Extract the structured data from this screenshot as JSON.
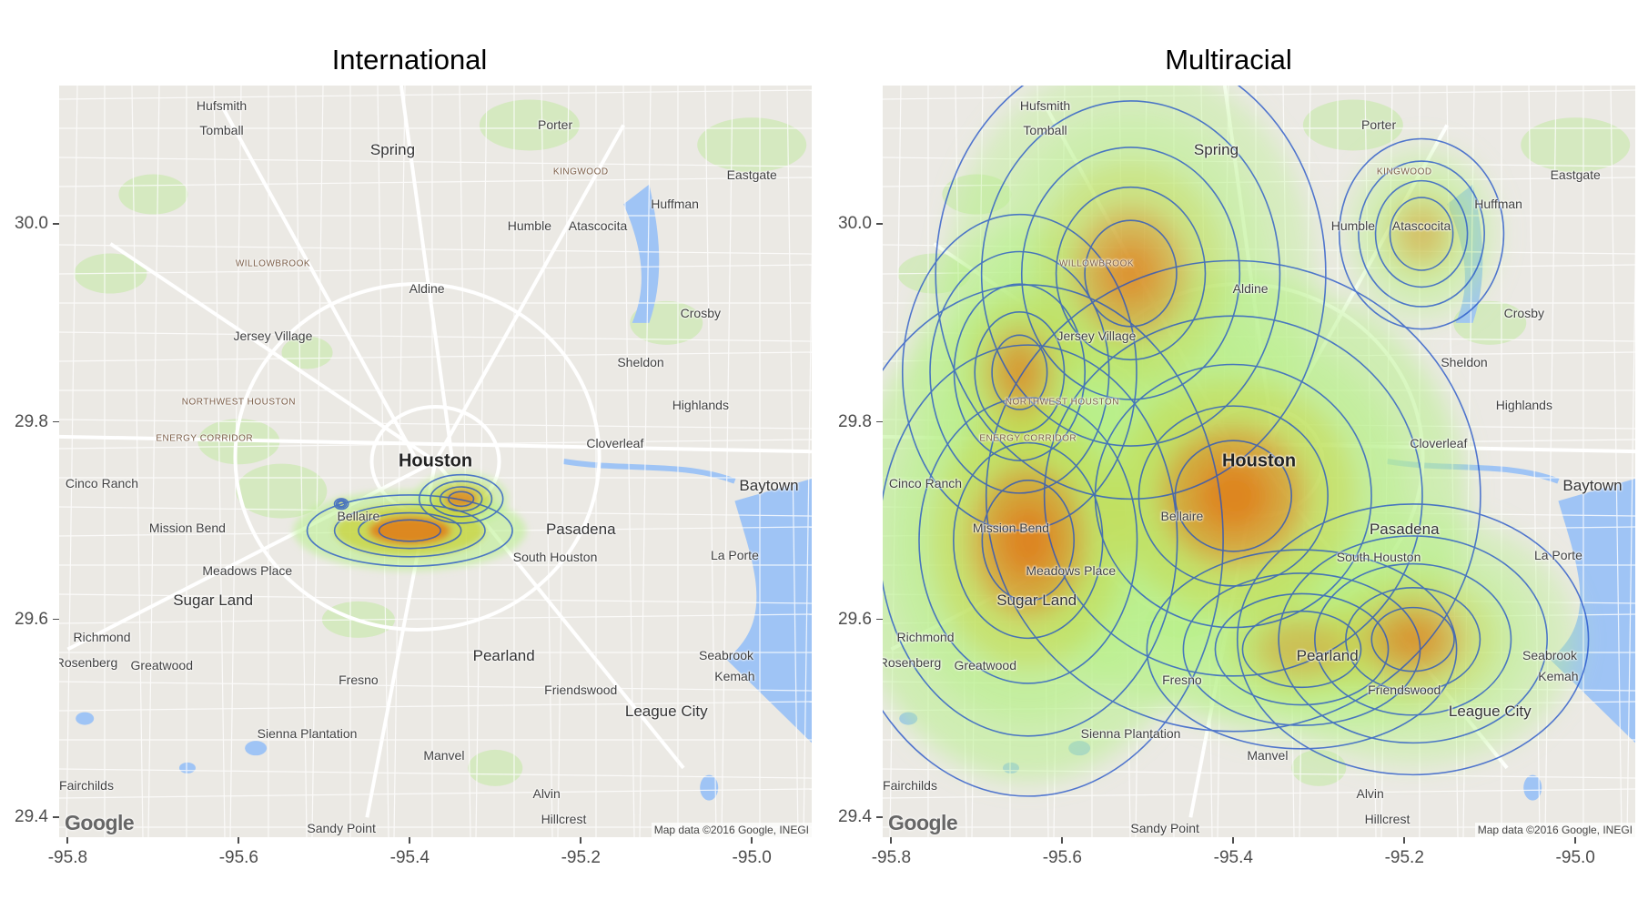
{
  "panels": [
    {
      "id": "left",
      "title": "International"
    },
    {
      "id": "right",
      "title": "Multiracial"
    }
  ],
  "axes": {
    "x_ticks": [
      "-95.8",
      "-95.6",
      "-95.4",
      "-95.2",
      "-95.0"
    ],
    "y_ticks": [
      "30.0",
      "29.8",
      "29.6",
      "29.4"
    ],
    "x_range": [
      -95.81,
      -94.93
    ],
    "y_range": [
      29.38,
      30.14
    ]
  },
  "map": {
    "logo": "Google",
    "attribution": "Map data ©2016 Google, INEGI",
    "places": [
      {
        "name": "Hufsmith",
        "lon": -95.62,
        "lat": 30.12,
        "size": "normal"
      },
      {
        "name": "Tomball",
        "lon": -95.62,
        "lat": 30.095,
        "size": "normal"
      },
      {
        "name": "Porter",
        "lon": -95.23,
        "lat": 30.1,
        "size": "normal"
      },
      {
        "name": "Spring",
        "lon": -95.42,
        "lat": 30.075,
        "size": "big"
      },
      {
        "name": "KINGWOOD",
        "lon": -95.2,
        "lat": 30.053,
        "size": "district"
      },
      {
        "name": "Eastgate",
        "lon": -95.0,
        "lat": 30.05,
        "size": "normal"
      },
      {
        "name": "Huffman",
        "lon": -95.09,
        "lat": 30.02,
        "size": "normal"
      },
      {
        "name": "Humble",
        "lon": -95.26,
        "lat": 29.998,
        "size": "normal"
      },
      {
        "name": "Atascocita",
        "lon": -95.18,
        "lat": 29.998,
        "size": "normal"
      },
      {
        "name": "WILLOWBROOK",
        "lon": -95.56,
        "lat": 29.96,
        "size": "district"
      },
      {
        "name": "Aldine",
        "lon": -95.38,
        "lat": 29.935,
        "size": "normal"
      },
      {
        "name": "Crosby",
        "lon": -95.06,
        "lat": 29.91,
        "size": "normal"
      },
      {
        "name": "Jersey Village",
        "lon": -95.56,
        "lat": 29.887,
        "size": "normal"
      },
      {
        "name": "Sheldon",
        "lon": -95.13,
        "lat": 29.86,
        "size": "normal"
      },
      {
        "name": "NORTHWEST HOUSTON",
        "lon": -95.6,
        "lat": 29.82,
        "size": "district"
      },
      {
        "name": "Highlands",
        "lon": -95.06,
        "lat": 29.817,
        "size": "normal"
      },
      {
        "name": "ENERGY CORRIDOR",
        "lon": -95.64,
        "lat": 29.783,
        "size": "district"
      },
      {
        "name": "Cloverleaf",
        "lon": -95.16,
        "lat": 29.778,
        "size": "normal"
      },
      {
        "name": "Houston",
        "lon": -95.37,
        "lat": 29.76,
        "size": "major"
      },
      {
        "name": "Cinco Ranch",
        "lon": -95.76,
        "lat": 29.738,
        "size": "normal"
      },
      {
        "name": "Baytown",
        "lon": -94.98,
        "lat": 29.735,
        "size": "big"
      },
      {
        "name": "Bellaire",
        "lon": -95.46,
        "lat": 29.705,
        "size": "normal"
      },
      {
        "name": "Mission Bend",
        "lon": -95.66,
        "lat": 29.693,
        "size": "normal"
      },
      {
        "name": "Pasadena",
        "lon": -95.2,
        "lat": 29.691,
        "size": "big"
      },
      {
        "name": "South Houston",
        "lon": -95.23,
        "lat": 29.663,
        "size": "normal"
      },
      {
        "name": "La Porte",
        "lon": -95.02,
        "lat": 29.665,
        "size": "normal"
      },
      {
        "name": "Meadows Place",
        "lon": -95.59,
        "lat": 29.65,
        "size": "normal"
      },
      {
        "name": "Sugar Land",
        "lon": -95.63,
        "lat": 29.619,
        "size": "big"
      },
      {
        "name": "Richmond",
        "lon": -95.76,
        "lat": 29.582,
        "size": "normal"
      },
      {
        "name": "Seabrook",
        "lon": -95.03,
        "lat": 29.564,
        "size": "normal"
      },
      {
        "name": "Greatwood",
        "lon": -95.69,
        "lat": 29.554,
        "size": "normal"
      },
      {
        "name": "Pearland",
        "lon": -95.29,
        "lat": 29.563,
        "size": "big"
      },
      {
        "name": "Kemah",
        "lon": -95.02,
        "lat": 29.543,
        "size": "normal"
      },
      {
        "name": "Fresno",
        "lon": -95.46,
        "lat": 29.539,
        "size": "normal"
      },
      {
        "name": "Friendswood",
        "lon": -95.2,
        "lat": 29.529,
        "size": "normal"
      },
      {
        "name": "League City",
        "lon": -95.1,
        "lat": 29.507,
        "size": "big"
      },
      {
        "name": "Sienna Plantation",
        "lon": -95.52,
        "lat": 29.485,
        "size": "normal"
      },
      {
        "name": "Manvel",
        "lon": -95.36,
        "lat": 29.463,
        "size": "normal"
      },
      {
        "name": "Fairchilds",
        "lon": -95.78,
        "lat": 29.432,
        "size": "normal"
      },
      {
        "name": "Alvin",
        "lon": -95.24,
        "lat": 29.424,
        "size": "normal"
      },
      {
        "name": "Hillcrest",
        "lon": -95.22,
        "lat": 29.398,
        "size": "normal"
      },
      {
        "name": "Sandy Point",
        "lon": -95.48,
        "lat": 29.389,
        "size": "normal"
      },
      {
        "name": "Rosenberg",
        "lon": -95.8,
        "lat": 29.557,
        "size": "normal"
      }
    ]
  },
  "colors": {
    "map_background": "#ebe9e4",
    "water": "#9fc4f5",
    "park": "#cce8b0",
    "road": "#ffffff",
    "density_low": "#b8f08a",
    "density_mid": "#c8d23a",
    "density_high": "#e07a18",
    "contour": "#1e4fc8"
  },
  "chart_data": [
    {
      "type": "heatmap",
      "title": "International",
      "description_units": "longitude / latitude",
      "x_ticks": [
        -95.8,
        -95.6,
        -95.4,
        -95.2,
        -95.0
      ],
      "y_ticks": [
        29.4,
        29.6,
        29.8,
        30.0
      ],
      "density_peaks": [
        {
          "lon": -95.4,
          "lat": 29.69,
          "sx": 0.04,
          "sy": 0.012,
          "weight": 1.0
        },
        {
          "lon": -95.34,
          "lat": 29.722,
          "sx": 0.022,
          "sy": 0.011,
          "weight": 0.55
        },
        {
          "lon": -95.48,
          "lat": 29.717,
          "sx": 0.006,
          "sy": 0.004,
          "weight": 0.2
        }
      ]
    },
    {
      "type": "heatmap",
      "title": "Multiracial",
      "description_units": "longitude / latitude",
      "x_ticks": [
        -95.8,
        -95.6,
        -95.4,
        -95.2,
        -95.0
      ],
      "y_ticks": [
        29.4,
        29.6,
        29.8,
        30.0
      ],
      "density_peaks": [
        {
          "lon": -95.4,
          "lat": 29.725,
          "sx": 0.085,
          "sy": 0.07,
          "weight": 1.0
        },
        {
          "lon": -95.64,
          "lat": 29.68,
          "sx": 0.075,
          "sy": 0.085,
          "weight": 0.8
        },
        {
          "lon": -95.52,
          "lat": 29.95,
          "sx": 0.1,
          "sy": 0.1,
          "weight": 0.45
        },
        {
          "lon": -95.65,
          "lat": 29.85,
          "sx": 0.06,
          "sy": 0.07,
          "weight": 0.45
        },
        {
          "lon": -95.19,
          "lat": 29.58,
          "sx": 0.09,
          "sy": 0.06,
          "weight": 0.45
        },
        {
          "lon": -95.18,
          "lat": 29.99,
          "sx": 0.05,
          "sy": 0.05,
          "weight": 0.32
        },
        {
          "lon": -95.32,
          "lat": 29.57,
          "sx": 0.09,
          "sy": 0.05,
          "weight": 0.35
        }
      ]
    }
  ]
}
